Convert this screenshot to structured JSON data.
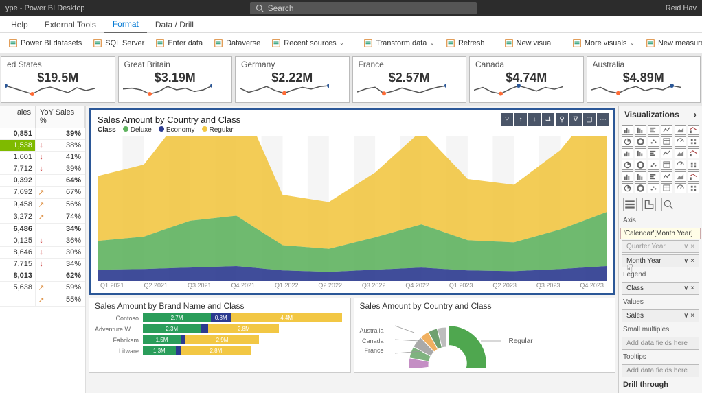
{
  "titlebar": {
    "title": "ype - Power BI Desktop",
    "search_placeholder": "Search",
    "user": "Reid Hav"
  },
  "ribbonTabs": [
    "Help",
    "External Tools",
    "Format",
    "Data / Drill"
  ],
  "ribbonActiveTab": 2,
  "ribbonButtons": [
    {
      "label": "Power BI datasets"
    },
    {
      "label": "SQL Server"
    },
    {
      "label": "Enter data"
    },
    {
      "label": "Dataverse"
    },
    {
      "label": "Recent sources",
      "chev": true
    },
    {
      "label": "Transform data",
      "chev": true
    },
    {
      "label": "Refresh"
    },
    {
      "label": "New visual"
    },
    {
      "label": "More visuals",
      "chev": true
    },
    {
      "label": "New measure"
    }
  ],
  "kpis": [
    {
      "title": "ed States",
      "value": "$19.5M",
      "spark": [
        18,
        14,
        10,
        6,
        13,
        16,
        12,
        8,
        15,
        11,
        14
      ],
      "low": 3,
      "high": 0
    },
    {
      "title": "Great Britain",
      "value": "$3.19M",
      "spark": [
        11,
        12,
        10,
        5,
        8,
        14,
        10,
        12,
        8,
        10,
        15
      ],
      "low": 3,
      "high": 10
    },
    {
      "title": "Germany",
      "value": "$2.22M",
      "spark": [
        12,
        7,
        10,
        14,
        9,
        6,
        10,
        13,
        11,
        14,
        15
      ],
      "low": 5,
      "high": 10
    },
    {
      "title": "France",
      "value": "$2.57M",
      "spark": [
        8,
        12,
        14,
        6,
        9,
        13,
        10,
        7,
        11,
        14,
        16
      ],
      "low": 3,
      "high": 10
    },
    {
      "title": "Canada",
      "value": "$4.74M",
      "spark": [
        9,
        12,
        7,
        5,
        10,
        14,
        11,
        8,
        12,
        10,
        13
      ],
      "low": 3,
      "high": 5
    },
    {
      "title": "Australia",
      "value": "$4.89M",
      "spark": [
        10,
        13,
        8,
        6,
        11,
        14,
        9,
        12,
        10,
        15,
        13
      ],
      "low": 3,
      "high": 9
    }
  ],
  "spark_colors": {
    "line": "#555",
    "low": "#ff6b35",
    "high": "#2b5797"
  },
  "leftTable": {
    "headers": [
      "ales",
      "YoY Sales %"
    ],
    "rows": [
      {
        "v": "0,851",
        "pct": "39%",
        "dir": "none",
        "bold": true
      },
      {
        "v": "1,538",
        "pct": "38%",
        "dir": "down",
        "hl": true
      },
      {
        "v": "1,601",
        "pct": "41%",
        "dir": "down"
      },
      {
        "v": "7,712",
        "pct": "39%",
        "dir": "down"
      },
      {
        "v": "0,392",
        "pct": "64%",
        "dir": "none",
        "bold": true
      },
      {
        "v": "7,692",
        "pct": "67%",
        "dir": "up"
      },
      {
        "v": "9,458",
        "pct": "56%",
        "dir": "up"
      },
      {
        "v": "3,272",
        "pct": "74%",
        "dir": "up"
      },
      {
        "v": "6,486",
        "pct": "34%",
        "dir": "none",
        "bold": true
      },
      {
        "v": "0,125",
        "pct": "36%",
        "dir": "down"
      },
      {
        "v": "8,646",
        "pct": "30%",
        "dir": "down"
      },
      {
        "v": "7,715",
        "pct": "34%",
        "dir": "down"
      },
      {
        "v": "8,013",
        "pct": "62%",
        "dir": "none",
        "bold": true
      },
      {
        "v": "5,638",
        "pct": "59%",
        "dir": "up"
      },
      {
        "v": "",
        "pct": "55%",
        "dir": "up"
      }
    ]
  },
  "areaChart": {
    "title": "Sales Amount by Country and Class",
    "legend_label": "Class",
    "legend": [
      {
        "label": "Deluxe",
        "color": "#5fb35f"
      },
      {
        "label": "Economy",
        "color": "#2b3a8f"
      },
      {
        "label": "Regular",
        "color": "#f2c744"
      }
    ],
    "xlabels": [
      "Q1 2021",
      "Q2 2021",
      "Q3 2021",
      "Q4 2021",
      "Q1 2022",
      "Q2 2022",
      "Q3 2022",
      "Q4 2022",
      "Q1 2023",
      "Q2 2023",
      "Q3 2023",
      "Q4 2023"
    ],
    "series_colors": {
      "regular": "#f2c744",
      "deluxe": "#5fb35f",
      "economy": "#2b3a8f",
      "band_opacity": 0.45
    },
    "ymax": 200,
    "economy": [
      15,
      16,
      18,
      20,
      14,
      12,
      15,
      18,
      14,
      13,
      16,
      20
    ],
    "deluxe": [
      40,
      45,
      65,
      70,
      35,
      32,
      45,
      60,
      42,
      40,
      55,
      75
    ],
    "regular": [
      90,
      100,
      160,
      175,
      70,
      65,
      90,
      130,
      85,
      80,
      110,
      165
    ],
    "vis_toolbar_icons": [
      "?",
      "↑",
      "↓",
      "⇊",
      "⚲",
      "∇",
      "▢",
      "⋯"
    ]
  },
  "brandChart": {
    "title": "Sales Amount by Brand Name and Class",
    "colors": {
      "deluxe": "#2a9d5a",
      "economy": "#2b3a8f",
      "regular": "#f2c744"
    },
    "max": 8.0,
    "rows": [
      {
        "brand": "Contoso",
        "deluxe": 2.7,
        "deluxe_lbl": "2.7M",
        "economy": 0.8,
        "economy_lbl": "0.8M",
        "regular": 4.4,
        "regular_lbl": "4.4M"
      },
      {
        "brand": "Adventure Wo…",
        "deluxe": 2.3,
        "deluxe_lbl": "2.3M",
        "economy": 0.3,
        "economy_lbl": "",
        "regular": 2.8,
        "regular_lbl": "2.8M"
      },
      {
        "brand": "Fabrikam",
        "deluxe": 1.5,
        "deluxe_lbl": "1.5M",
        "economy": 0.2,
        "economy_lbl": "",
        "regular": 2.9,
        "regular_lbl": "2.9M"
      },
      {
        "brand": "Litware",
        "deluxe": 1.3,
        "deluxe_lbl": "1.3M",
        "economy": 0.2,
        "economy_lbl": "",
        "regular": 2.8,
        "regular_lbl": "2.8M"
      }
    ]
  },
  "donut": {
    "title": "Sales Amount by Country and Class",
    "regular_label": "Regular",
    "countries": [
      "Australia",
      "Canada",
      "France"
    ],
    "slices": [
      {
        "color": "#4fa74f",
        "pct": 30
      },
      {
        "color": "#f2c744",
        "pct": 12
      },
      {
        "color": "#e57373",
        "pct": 10
      },
      {
        "color": "#5b8db8",
        "pct": 8
      },
      {
        "color": "#8fbf8f",
        "pct": 7
      },
      {
        "color": "#d4a13f",
        "pct": 6
      },
      {
        "color": "#c48ec4",
        "pct": 5
      },
      {
        "color": "#7fb37f",
        "pct": 5
      },
      {
        "color": "#a9a9a9",
        "pct": 5
      },
      {
        "color": "#f0b060",
        "pct": 4
      },
      {
        "color": "#6fa06f",
        "pct": 4
      },
      {
        "color": "#bdbdbd",
        "pct": 4
      }
    ]
  },
  "visPane": {
    "title": "Visualizations",
    "sections": {
      "axis": "Axis",
      "tooltip_field": "'Calendar'[Month Year]",
      "quarter": "Quarter Year",
      "month": "Month Year",
      "legend": "Legend",
      "class": "Class",
      "values": "Values",
      "sales": "Sales",
      "small": "Small multiples",
      "placeholder": "Add data fields here",
      "tooltips": "Tooltips",
      "placeholder2": "Add data fields here",
      "drill": "Drill through"
    }
  }
}
